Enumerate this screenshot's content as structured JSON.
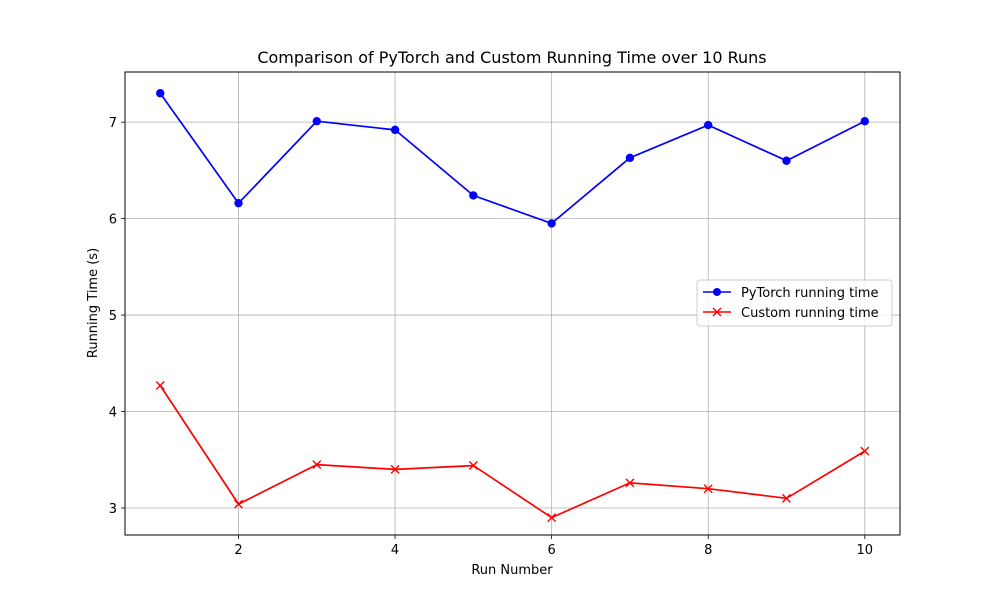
{
  "chart_data": {
    "type": "line",
    "title": "Comparison of PyTorch and Custom Running Time over 10 Runs",
    "xlabel": "Run Number",
    "ylabel": "Running Time (s)",
    "x": [
      1,
      2,
      3,
      4,
      5,
      6,
      7,
      8,
      9,
      10
    ],
    "xlim": [
      0.55,
      10.45
    ],
    "ylim": [
      2.72,
      7.52
    ],
    "xticks": [
      2,
      4,
      6,
      8,
      10
    ],
    "yticks": [
      3,
      4,
      5,
      6,
      7
    ],
    "grid": true,
    "legend_position": "center-right",
    "series": [
      {
        "name": "PyTorch running time",
        "color": "#0000ff",
        "marker": "circle",
        "values": [
          7.3,
          6.16,
          7.01,
          6.92,
          6.24,
          5.95,
          6.63,
          6.97,
          6.6,
          7.01
        ]
      },
      {
        "name": "Custom running time",
        "color": "#ff0000",
        "marker": "x",
        "values": [
          4.27,
          3.04,
          3.45,
          3.4,
          3.44,
          2.9,
          3.26,
          3.2,
          3.1,
          3.59
        ]
      }
    ]
  }
}
